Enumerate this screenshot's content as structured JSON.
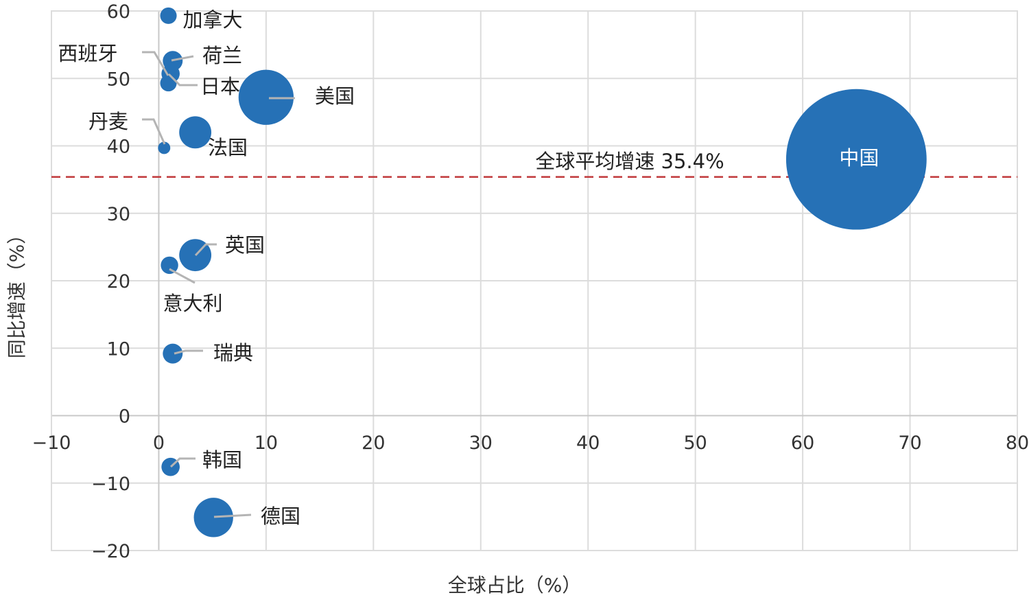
{
  "chart_data": {
    "type": "bubble",
    "xlabel": "全球占比（%）",
    "ylabel": "同比增速（%）",
    "xlim": [
      -10,
      80
    ],
    "ylim": [
      -20,
      60
    ],
    "x_ticks": [
      -10,
      0,
      10,
      20,
      30,
      40,
      50,
      60,
      70,
      80
    ],
    "y_ticks": [
      -20,
      -10,
      0,
      10,
      20,
      30,
      40,
      50,
      60
    ],
    "x_tick_labels": [
      "−10",
      "0",
      "10",
      "20",
      "30",
      "40",
      "50",
      "60",
      "70",
      "80"
    ],
    "y_tick_labels": [
      "−20",
      "−10",
      "0",
      "10",
      "20",
      "30",
      "40",
      "50",
      "60"
    ],
    "grid": true,
    "bubble_color": "#2671b6",
    "reference_line": {
      "y": 35.4,
      "label": "全球平均增速  35.4%",
      "color": "#c0393b",
      "style": "dashed"
    },
    "points": [
      {
        "name": "中国",
        "x": 65.0,
        "y": 38.0,
        "size": 65.0
      },
      {
        "name": "美国",
        "x": 10.0,
        "y": 47.2,
        "size": 10.0
      },
      {
        "name": "加拿大",
        "x": 0.9,
        "y": 59.3,
        "size": 0.9
      },
      {
        "name": "荷兰",
        "x": 1.3,
        "y": 52.6,
        "size": 1.3
      },
      {
        "name": "西班牙",
        "x": 1.1,
        "y": 50.7,
        "size": 1.1
      },
      {
        "name": "日本",
        "x": 0.9,
        "y": 49.3,
        "size": 0.9
      },
      {
        "name": "丹麦",
        "x": 0.5,
        "y": 39.7,
        "size": 0.5
      },
      {
        "name": "法国",
        "x": 3.4,
        "y": 42.0,
        "size": 3.4
      },
      {
        "name": "英国",
        "x": 3.4,
        "y": 23.8,
        "size": 3.4
      },
      {
        "name": "意大利",
        "x": 1.0,
        "y": 22.3,
        "size": 1.0
      },
      {
        "name": "瑞典",
        "x": 1.3,
        "y": 9.2,
        "size": 1.3
      },
      {
        "name": "韩国",
        "x": 1.1,
        "y": -7.6,
        "size": 1.1
      },
      {
        "name": "德国",
        "x": 5.1,
        "y": -15.1,
        "size": 5.1
      }
    ]
  }
}
